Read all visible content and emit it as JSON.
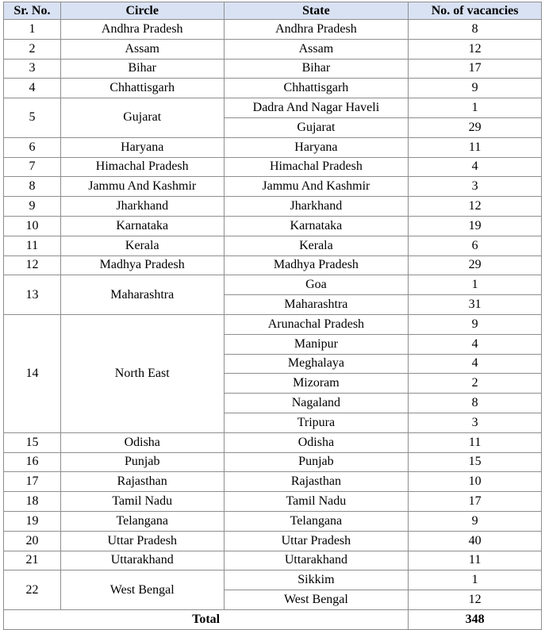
{
  "header_color": "#d9e2f3",
  "columns": [
    "Sr. No.",
    "Circle",
    "State",
    "No. of vacancies"
  ],
  "rows": [
    {
      "sr": "1",
      "circle": "Andhra Pradesh",
      "states": [
        [
          "Andhra Pradesh",
          "8"
        ]
      ]
    },
    {
      "sr": "2",
      "circle": "Assam",
      "states": [
        [
          "Assam",
          "12"
        ]
      ]
    },
    {
      "sr": "3",
      "circle": "Bihar",
      "states": [
        [
          "Bihar",
          "17"
        ]
      ]
    },
    {
      "sr": "4",
      "circle": "Chhattisgarh",
      "states": [
        [
          "Chhattisgarh",
          "9"
        ]
      ]
    },
    {
      "sr": "5",
      "circle": "Gujarat",
      "states": [
        [
          "Dadra And Nagar Haveli",
          "1"
        ],
        [
          "Gujarat",
          "29"
        ]
      ]
    },
    {
      "sr": "6",
      "circle": "Haryana",
      "states": [
        [
          "Haryana",
          "11"
        ]
      ]
    },
    {
      "sr": "7",
      "circle": "Himachal Pradesh",
      "states": [
        [
          "Himachal Pradesh",
          "4"
        ]
      ]
    },
    {
      "sr": "8",
      "circle": "Jammu And Kashmir",
      "states": [
        [
          "Jammu And Kashmir",
          "3"
        ]
      ]
    },
    {
      "sr": "9",
      "circle": "Jharkhand",
      "states": [
        [
          "Jharkhand",
          "12"
        ]
      ]
    },
    {
      "sr": "10",
      "circle": "Karnataka",
      "states": [
        [
          "Karnataka",
          "19"
        ]
      ]
    },
    {
      "sr": "11",
      "circle": "Kerala",
      "states": [
        [
          "Kerala",
          "6"
        ]
      ]
    },
    {
      "sr": "12",
      "circle": "Madhya Pradesh",
      "states": [
        [
          "Madhya Pradesh",
          "29"
        ]
      ]
    },
    {
      "sr": "13",
      "circle": "Maharashtra",
      "states": [
        [
          "Goa",
          "1"
        ],
        [
          "Maharashtra",
          "31"
        ]
      ]
    },
    {
      "sr": "14",
      "circle": "North East",
      "states": [
        [
          "Arunachal Pradesh",
          "9"
        ],
        [
          "Manipur",
          "4"
        ],
        [
          "Meghalaya",
          "4"
        ],
        [
          "Mizoram",
          "2"
        ],
        [
          "Nagaland",
          "8"
        ],
        [
          "Tripura",
          "3"
        ]
      ]
    },
    {
      "sr": "15",
      "circle": "Odisha",
      "states": [
        [
          "Odisha",
          "11"
        ]
      ]
    },
    {
      "sr": "16",
      "circle": "Punjab",
      "states": [
        [
          "Punjab",
          "15"
        ]
      ]
    },
    {
      "sr": "17",
      "circle": "Rajasthan",
      "states": [
        [
          "Rajasthan",
          "10"
        ]
      ]
    },
    {
      "sr": "18",
      "circle": "Tamil Nadu",
      "states": [
        [
          "Tamil Nadu",
          "17"
        ]
      ]
    },
    {
      "sr": "19",
      "circle": "Telangana",
      "states": [
        [
          "Telangana",
          "9"
        ]
      ]
    },
    {
      "sr": "20",
      "circle": "Uttar Pradesh",
      "states": [
        [
          "Uttar Pradesh",
          "40"
        ]
      ]
    },
    {
      "sr": "21",
      "circle": "Uttarakhand",
      "states": [
        [
          "Uttarakhand",
          "11"
        ]
      ]
    },
    {
      "sr": "22",
      "circle": "West Bengal",
      "states": [
        [
          "Sikkim",
          "1"
        ],
        [
          "West Bengal",
          "12"
        ]
      ]
    }
  ],
  "total": {
    "label": "Total",
    "value": "348"
  }
}
